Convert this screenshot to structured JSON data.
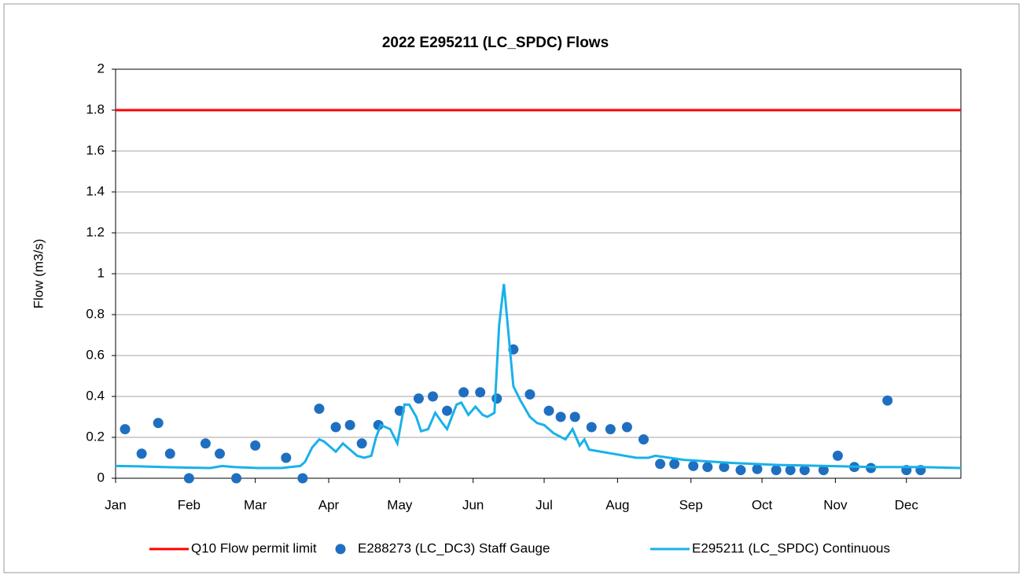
{
  "chart_data": {
    "type": "line",
    "title": "2022 E295211 (LC_SPDC) Flows",
    "y_label": "Flow (m3/s)",
    "xlim": [
      0,
      357
    ],
    "xticks": [
      {
        "value": 0,
        "label": "Jan"
      },
      {
        "value": 31,
        "label": "Feb"
      },
      {
        "value": 59,
        "label": "Mar"
      },
      {
        "value": 90,
        "label": "Apr"
      },
      {
        "value": 120,
        "label": "May"
      },
      {
        "value": 151,
        "label": "Jun"
      },
      {
        "value": 181,
        "label": "Jul"
      },
      {
        "value": 212,
        "label": "Aug"
      },
      {
        "value": 243,
        "label": "Sep"
      },
      {
        "value": 273,
        "label": "Oct"
      },
      {
        "value": 304,
        "label": "Nov"
      },
      {
        "value": 334,
        "label": "Dec"
      }
    ],
    "ylim": [
      0,
      2
    ],
    "yticks": [
      0,
      0.2,
      0.4,
      0.6,
      0.8,
      1,
      1.2,
      1.4,
      1.6,
      1.8,
      2
    ],
    "grid": true,
    "legend": "bottom",
    "series": [
      {
        "name": "Q10 Flow permit limit",
        "type": "line",
        "color": "#ff0000",
        "x": [
          0,
          357
        ],
        "values": [
          1.8,
          1.8
        ]
      },
      {
        "name": "E288273 (LC_DC3) Staff Gauge",
        "type": "scatter",
        "color": "#1f6fc1",
        "x": [
          4,
          11,
          18,
          23,
          31,
          38,
          44,
          51,
          59,
          72,
          79,
          86,
          93,
          99,
          104,
          111,
          120,
          128,
          134,
          140,
          147,
          154,
          161,
          168,
          175,
          183,
          188,
          194,
          201,
          209,
          216,
          223,
          230,
          236,
          244,
          250,
          257,
          264,
          271,
          279,
          285,
          291,
          299,
          305,
          312,
          319,
          326,
          334,
          340
        ],
        "values": [
          0.24,
          0.12,
          0.27,
          0.12,
          0,
          0.17,
          0.12,
          0,
          0.16,
          0.1,
          0,
          0.34,
          0.25,
          0.26,
          0.17,
          0.26,
          0.33,
          0.39,
          0.4,
          0.33,
          0.42,
          0.42,
          0.39,
          0.63,
          0.41,
          0.33,
          0.3,
          0.3,
          0.25,
          0.24,
          0.25,
          0.19,
          0.07,
          0.07,
          0.06,
          0.055,
          0.055,
          0.04,
          0.045,
          0.04,
          0.04,
          0.04,
          0.04,
          0.11,
          0.055,
          0.05,
          0.38,
          0.04,
          0.04
        ]
      },
      {
        "name": "E295211 (LC_SPDC) Continuous",
        "type": "line",
        "color": "#19b1ea",
        "x": [
          0,
          10,
          20,
          30,
          40,
          45,
          50,
          60,
          70,
          78,
          80,
          83,
          86,
          88,
          90,
          93,
          96,
          98,
          102,
          105,
          108,
          110,
          112,
          116,
          119,
          122,
          124,
          127,
          129,
          132,
          135,
          138,
          140,
          144,
          146,
          149,
          152,
          155,
          157,
          160,
          162,
          164,
          166,
          168,
          171,
          175,
          178,
          181,
          185,
          190,
          193,
          196,
          198,
          200,
          210,
          220,
          225,
          228,
          240,
          260,
          280,
          300,
          320,
          340,
          357
        ],
        "values": [
          0.06,
          0.058,
          0.055,
          0.052,
          0.05,
          0.06,
          0.055,
          0.05,
          0.05,
          0.06,
          0.08,
          0.15,
          0.19,
          0.18,
          0.16,
          0.13,
          0.17,
          0.15,
          0.11,
          0.1,
          0.11,
          0.2,
          0.26,
          0.24,
          0.17,
          0.36,
          0.36,
          0.3,
          0.23,
          0.24,
          0.32,
          0.27,
          0.24,
          0.36,
          0.37,
          0.31,
          0.35,
          0.31,
          0.3,
          0.32,
          0.75,
          0.95,
          0.7,
          0.45,
          0.38,
          0.3,
          0.27,
          0.26,
          0.22,
          0.19,
          0.24,
          0.16,
          0.19,
          0.14,
          0.12,
          0.1,
          0.1,
          0.11,
          0.09,
          0.075,
          0.065,
          0.06,
          0.055,
          0.055,
          0.05
        ]
      }
    ]
  }
}
